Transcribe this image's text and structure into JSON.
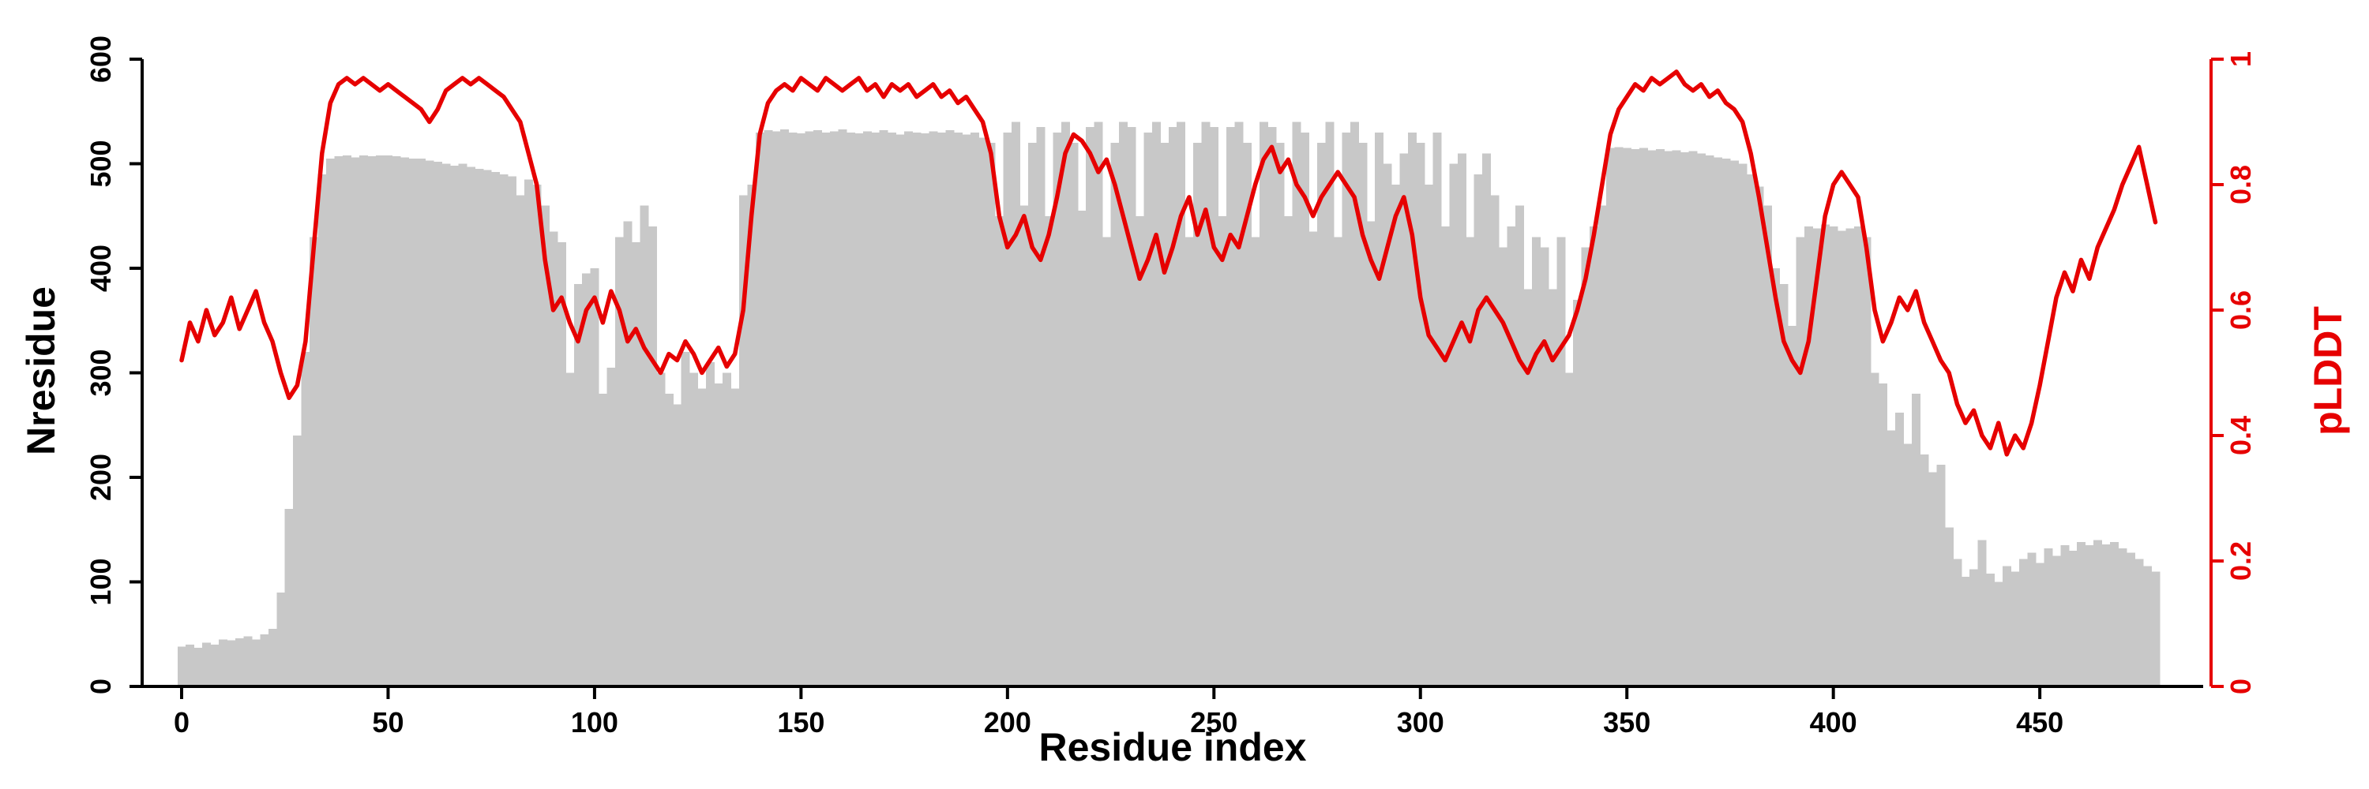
{
  "figure": {
    "xlabel": "Residue index",
    "ylabel_left": "Nresidue",
    "ylabel_right": "pLDDT"
  },
  "colors": {
    "bar": "#c8c8c8",
    "line": "#e60000",
    "axis": "#000000"
  },
  "chart_data": {
    "type": "bar+line",
    "title": "",
    "xlabel": "Residue index",
    "x_range": [
      0,
      480
    ],
    "x_start": 0,
    "x_step": 2,
    "x_ticks": [
      0,
      50,
      100,
      150,
      200,
      250,
      300,
      350,
      400,
      450
    ],
    "grid": false,
    "legend": "none",
    "y_left": {
      "label": "Nresidue",
      "range": [
        0,
        600
      ],
      "ticks": [
        0,
        100,
        200,
        300,
        400,
        500,
        600
      ],
      "color": "#000000"
    },
    "y_right": {
      "label": "pLDDT",
      "range": [
        0,
        1
      ],
      "ticks": [
        0,
        0.2,
        0.4,
        0.6,
        0.8,
        1
      ],
      "color": "#e60000"
    },
    "series": [
      {
        "name": "Nresidue",
        "type": "bar",
        "axis": "left",
        "color": "#c8c8c8",
        "values": [
          38,
          40,
          37,
          42,
          40,
          45,
          44,
          46,
          48,
          45,
          50,
          55,
          90,
          170,
          240,
          320,
          430,
          490,
          505,
          507,
          508,
          506,
          508,
          507,
          508,
          508,
          507,
          506,
          505,
          505,
          503,
          502,
          500,
          498,
          500,
          497,
          495,
          494,
          492,
          490,
          488,
          470,
          485,
          480,
          460,
          435,
          425,
          300,
          385,
          395,
          400,
          280,
          305,
          430,
          445,
          425,
          460,
          440,
          300,
          280,
          270,
          320,
          300,
          285,
          310,
          290,
          300,
          285,
          470,
          480,
          530,
          532,
          531,
          533,
          530,
          529,
          531,
          532,
          530,
          531,
          533,
          530,
          529,
          531,
          530,
          532,
          530,
          528,
          531,
          530,
          529,
          531,
          530,
          532,
          530,
          528,
          530,
          525,
          520,
          450,
          530,
          540,
          460,
          520,
          535,
          450,
          530,
          540,
          520,
          455,
          535,
          540,
          430,
          520,
          540,
          535,
          450,
          530,
          540,
          520,
          535,
          540,
          430,
          520,
          540,
          535,
          450,
          535,
          540,
          520,
          430,
          540,
          535,
          520,
          450,
          540,
          530,
          435,
          520,
          540,
          430,
          530,
          540,
          520,
          445,
          530,
          500,
          480,
          510,
          530,
          520,
          480,
          530,
          440,
          500,
          510,
          430,
          490,
          510,
          470,
          420,
          440,
          460,
          380,
          430,
          420,
          380,
          430,
          300,
          370,
          420,
          440,
          460,
          515,
          516,
          515,
          514,
          515,
          513,
          514,
          512,
          513,
          511,
          512,
          510,
          508,
          506,
          505,
          503,
          500,
          490,
          478,
          460,
          400,
          385,
          345,
          430,
          440,
          438,
          442,
          440,
          436,
          438,
          440,
          430,
          300,
          290,
          245,
          262,
          232,
          280,
          222,
          205,
          212,
          152,
          122,
          105,
          112,
          140,
          108,
          100,
          115,
          110,
          122,
          128,
          118,
          132,
          125,
          135,
          130,
          138,
          135,
          140,
          136,
          138,
          132,
          128,
          122,
          115,
          110
        ]
      },
      {
        "name": "pLDDT",
        "type": "line",
        "axis": "right",
        "color": "#e60000",
        "values": [
          0.52,
          0.58,
          0.55,
          0.6,
          0.56,
          0.58,
          0.62,
          0.57,
          0.6,
          0.63,
          0.58,
          0.55,
          0.5,
          0.46,
          0.48,
          0.55,
          0.7,
          0.85,
          0.93,
          0.96,
          0.97,
          0.96,
          0.97,
          0.96,
          0.95,
          0.96,
          0.95,
          0.94,
          0.93,
          0.92,
          0.9,
          0.92,
          0.95,
          0.96,
          0.97,
          0.96,
          0.97,
          0.96,
          0.95,
          0.94,
          0.92,
          0.9,
          0.85,
          0.8,
          0.68,
          0.6,
          0.62,
          0.58,
          0.55,
          0.6,
          0.62,
          0.58,
          0.63,
          0.6,
          0.55,
          0.57,
          0.54,
          0.52,
          0.5,
          0.53,
          0.52,
          0.55,
          0.53,
          0.5,
          0.52,
          0.54,
          0.51,
          0.53,
          0.6,
          0.75,
          0.88,
          0.93,
          0.95,
          0.96,
          0.95,
          0.97,
          0.96,
          0.95,
          0.97,
          0.96,
          0.95,
          0.96,
          0.97,
          0.95,
          0.96,
          0.94,
          0.96,
          0.95,
          0.96,
          0.94,
          0.95,
          0.96,
          0.94,
          0.95,
          0.93,
          0.94,
          0.92,
          0.9,
          0.85,
          0.75,
          0.7,
          0.72,
          0.75,
          0.7,
          0.68,
          0.72,
          0.78,
          0.85,
          0.88,
          0.87,
          0.85,
          0.82,
          0.84,
          0.8,
          0.75,
          0.7,
          0.65,
          0.68,
          0.72,
          0.66,
          0.7,
          0.75,
          0.78,
          0.72,
          0.76,
          0.7,
          0.68,
          0.72,
          0.7,
          0.75,
          0.8,
          0.84,
          0.86,
          0.82,
          0.84,
          0.8,
          0.78,
          0.75,
          0.78,
          0.8,
          0.82,
          0.8,
          0.78,
          0.72,
          0.68,
          0.65,
          0.7,
          0.75,
          0.78,
          0.72,
          0.62,
          0.56,
          0.54,
          0.52,
          0.55,
          0.58,
          0.55,
          0.6,
          0.62,
          0.6,
          0.58,
          0.55,
          0.52,
          0.5,
          0.53,
          0.55,
          0.52,
          0.54,
          0.56,
          0.6,
          0.65,
          0.72,
          0.8,
          0.88,
          0.92,
          0.94,
          0.96,
          0.95,
          0.97,
          0.96,
          0.97,
          0.98,
          0.96,
          0.95,
          0.96,
          0.94,
          0.95,
          0.93,
          0.92,
          0.9,
          0.85,
          0.78,
          0.7,
          0.62,
          0.55,
          0.52,
          0.5,
          0.55,
          0.65,
          0.75,
          0.8,
          0.82,
          0.8,
          0.78,
          0.7,
          0.6,
          0.55,
          0.58,
          0.62,
          0.6,
          0.63,
          0.58,
          0.55,
          0.52,
          0.5,
          0.45,
          0.42,
          0.44,
          0.4,
          0.38,
          0.42,
          0.37,
          0.4,
          0.38,
          0.42,
          0.48,
          0.55,
          0.62,
          0.66,
          0.63,
          0.68,
          0.65,
          0.7,
          0.73,
          0.76,
          0.8,
          0.83,
          0.86,
          0.8,
          0.74
        ]
      }
    ]
  }
}
